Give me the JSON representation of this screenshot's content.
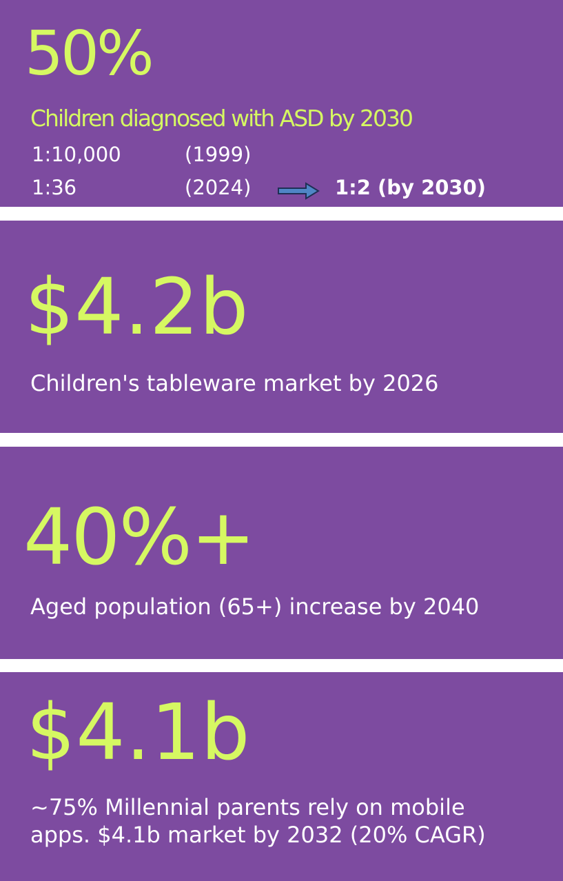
{
  "sections": [
    {
      "headline": "50%",
      "subtitle": "Children diagnosed with ASD by 2030",
      "rows": [
        {
          "ratio": "1:10,000",
          "year": "(1999)"
        },
        {
          "ratio": "1:36",
          "year": "(2024)",
          "projection": "1:2 (by 2030)"
        }
      ]
    },
    {
      "headline": "$4.2b",
      "description": "Children's tableware market by 2026"
    },
    {
      "headline": "40%+",
      "description": "Aged population (65+) increase by 2040"
    },
    {
      "headline": "$4.1b",
      "description_lines": [
        "~75% Millennial parents rely on mobile",
        "apps. $4.1b market by 2032 (20% CAGR)"
      ]
    }
  ],
  "colors": {
    "panel": "#7d4ba0",
    "accent": "#d6f862",
    "text": "#ffffff",
    "arrow": "#4f86c6"
  },
  "icons": {
    "arrow": "right-arrow-icon"
  }
}
